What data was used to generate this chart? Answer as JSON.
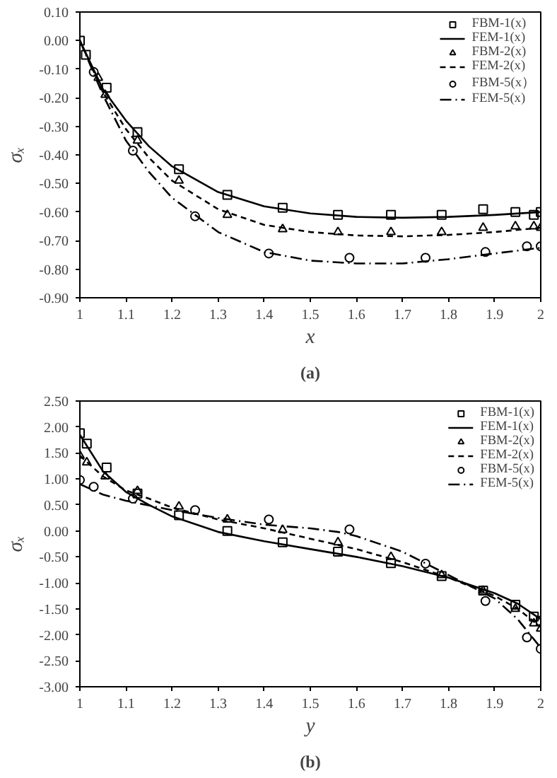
{
  "chart_data": [
    {
      "type": "line",
      "xlabel": "x",
      "ylabel": "σₓ",
      "annotations": [
        "(a)"
      ],
      "xlim": [
        1,
        2
      ],
      "xticks": [
        1,
        1.1,
        1.2,
        1.3,
        1.4,
        1.5,
        1.6,
        1.7,
        1.8,
        1.9,
        2
      ],
      "ylim": [
        -0.9,
        0.1
      ],
      "yticks": [
        {
          "value": 0.1,
          "label": "0.10"
        },
        {
          "value": 0,
          "label": "0.00"
        },
        {
          "value": -0.1,
          "label": "-0.10"
        },
        {
          "value": -0.2,
          "label": "-0.20"
        },
        {
          "value": -0.3,
          "label": "-0.30"
        },
        {
          "value": -0.4,
          "label": "-0.40"
        },
        {
          "value": -0.5,
          "label": "-0.50"
        },
        {
          "value": -0.6,
          "label": "-0.60"
        },
        {
          "value": -0.7,
          "label": "-0.70"
        },
        {
          "value": -0.8,
          "label": "-0.80"
        },
        {
          "value": -0.9,
          "label": "-0.90"
        }
      ],
      "grid": false,
      "legend": "top right",
      "series": [
        {
          "type": "scatter",
          "name": "FBM-1(x)",
          "color": "#000000",
          "marker": "square",
          "x": [
            1,
            1.013,
            1.058,
            1.125,
            1.215,
            1.32,
            1.44,
            1.56,
            1.675,
            1.785,
            1.875,
            1.945,
            1.985,
            2.0
          ],
          "values": [
            0,
            -0.05,
            -0.165,
            -0.32,
            -0.45,
            -0.54,
            -0.585,
            -0.61,
            -0.61,
            -0.61,
            -0.59,
            -0.6,
            -0.61,
            -0.6
          ]
        },
        {
          "type": "line",
          "name": "FEM-1(x)",
          "color": "#000000",
          "line_style": "solid",
          "x": [
            1,
            1.05,
            1.1,
            1.15,
            1.2,
            1.3,
            1.4,
            1.5,
            1.6,
            1.7,
            1.8,
            1.9,
            2.0
          ],
          "values": [
            0,
            -0.17,
            -0.28,
            -0.37,
            -0.44,
            -0.53,
            -0.58,
            -0.605,
            -0.617,
            -0.62,
            -0.617,
            -0.61,
            -0.6
          ]
        },
        {
          "type": "scatter",
          "name": "FBM-2(x)",
          "color": "#000000",
          "marker": "triangle",
          "x": [
            1.04,
            1.055,
            1.125,
            1.215,
            1.32,
            1.44,
            1.56,
            1.675,
            1.785,
            1.875,
            1.945,
            1.985,
            2.0
          ],
          "values": [
            -0.13,
            -0.19,
            -0.35,
            -0.49,
            -0.61,
            -0.66,
            -0.67,
            -0.67,
            -0.67,
            -0.655,
            -0.65,
            -0.65,
            -0.655
          ]
        },
        {
          "type": "line",
          "name": "FEM-2(x)",
          "color": "#000000",
          "line_style": "dashed",
          "x": [
            1,
            1.05,
            1.1,
            1.15,
            1.2,
            1.3,
            1.4,
            1.5,
            1.6,
            1.7,
            1.8,
            1.9,
            2.0
          ],
          "values": [
            0,
            -0.18,
            -0.31,
            -0.41,
            -0.49,
            -0.59,
            -0.645,
            -0.67,
            -0.682,
            -0.685,
            -0.68,
            -0.67,
            -0.655
          ]
        },
        {
          "type": "scatter",
          "name": "FBM-5(x）",
          "color": "#000000",
          "marker": "circle",
          "x": [
            1.03,
            1.115,
            1.25,
            1.41,
            1.585,
            1.75,
            1.88,
            1.97,
            2.0
          ],
          "values": [
            -0.11,
            -0.385,
            -0.615,
            -0.745,
            -0.76,
            -0.76,
            -0.74,
            -0.72,
            -0.72
          ]
        },
        {
          "type": "line",
          "name": "FEM-5(x)",
          "color": "#000000",
          "line_style": "dashdot",
          "x": [
            1,
            1.05,
            1.1,
            1.15,
            1.2,
            1.3,
            1.4,
            1.5,
            1.6,
            1.7,
            1.8,
            1.9,
            2.0
          ],
          "values": [
            0,
            -0.19,
            -0.35,
            -0.46,
            -0.55,
            -0.67,
            -0.74,
            -0.77,
            -0.78,
            -0.78,
            -0.765,
            -0.745,
            -0.725
          ]
        }
      ]
    },
    {
      "type": "line",
      "xlabel": "y",
      "ylabel": "σₓ",
      "annotations": [
        "(b)"
      ],
      "xlim": [
        1,
        2
      ],
      "xticks": [
        1,
        1.1,
        1.2,
        1.3,
        1.4,
        1.5,
        1.6,
        1.7,
        1.8,
        1.9,
        2
      ],
      "ylim": [
        -3,
        2.5
      ],
      "yticks": [
        {
          "value": 2.5,
          "label": "2.50"
        },
        {
          "value": 2,
          "label": "2.00"
        },
        {
          "value": 1.5,
          "label": "1.50"
        },
        {
          "value": 1,
          "label": "1.00"
        },
        {
          "value": 0.5,
          "label": "0.50"
        },
        {
          "value": 0,
          "label": "0.00"
        },
        {
          "value": -0.5,
          "label": "-0.50"
        },
        {
          "value": -1,
          "label": "-1.00"
        },
        {
          "value": -1.5,
          "label": "-1.50"
        },
        {
          "value": -2,
          "label": "-2.00"
        },
        {
          "value": -2.5,
          "label": "-2.50"
        },
        {
          "value": -3,
          "label": "-3.00"
        }
      ],
      "grid": false,
      "legend": "top right",
      "series": [
        {
          "type": "scatter",
          "name": "FBM-1(x)",
          "color": "#000000",
          "marker": "square",
          "x": [
            1,
            1.015,
            1.058,
            1.125,
            1.215,
            1.32,
            1.44,
            1.56,
            1.675,
            1.785,
            1.875,
            1.945,
            1.985,
            2.0
          ],
          "values": [
            1.88,
            1.68,
            1.22,
            0.72,
            0.3,
            0.0,
            -0.22,
            -0.4,
            -0.62,
            -0.87,
            -1.15,
            -1.42,
            -1.65,
            -1.73
          ]
        },
        {
          "type": "line",
          "name": "FEM-1(x)",
          "color": "#000000",
          "line_style": "solid",
          "x": [
            1,
            1.05,
            1.1,
            1.15,
            1.2,
            1.3,
            1.4,
            1.5,
            1.6,
            1.7,
            1.8,
            1.9,
            1.95,
            2.0
          ],
          "values": [
            1.85,
            1.15,
            0.75,
            0.5,
            0.28,
            -0.02,
            -0.2,
            -0.35,
            -0.5,
            -0.68,
            -0.9,
            -1.2,
            -1.4,
            -1.7
          ]
        },
        {
          "type": "scatter",
          "name": "FBM-2(x)",
          "color": "#000000",
          "marker": "triangle",
          "x": [
            1,
            1.015,
            1.055,
            1.125,
            1.215,
            1.32,
            1.44,
            1.56,
            1.675,
            1.785,
            1.875,
            1.945,
            1.985,
            2.0
          ],
          "values": [
            1.45,
            1.32,
            1.05,
            0.77,
            0.47,
            0.22,
            0.02,
            -0.22,
            -0.5,
            -0.85,
            -1.15,
            -1.5,
            -1.78,
            -1.88
          ]
        },
        {
          "type": "line",
          "name": "FEM-2(x)",
          "color": "#000000",
          "line_style": "dashed",
          "x": [
            1,
            1.05,
            1.1,
            1.15,
            1.2,
            1.3,
            1.4,
            1.5,
            1.6,
            1.7,
            1.8,
            1.9,
            1.95,
            2.0
          ],
          "values": [
            1.45,
            1.05,
            0.78,
            0.62,
            0.45,
            0.22,
            0.05,
            -0.15,
            -0.35,
            -0.6,
            -0.9,
            -1.25,
            -1.5,
            -1.85
          ]
        },
        {
          "type": "scatter",
          "name": "FBM-5(x)",
          "color": "#000000",
          "marker": "circle",
          "x": [
            1,
            1.03,
            1.115,
            1.25,
            1.41,
            1.585,
            1.75,
            1.88,
            1.97,
            2.0
          ],
          "values": [
            0.98,
            0.85,
            0.62,
            0.4,
            0.22,
            0.03,
            -0.63,
            -1.35,
            -2.05,
            -2.27
          ]
        },
        {
          "type": "line",
          "name": "FEM-5(x)",
          "color": "#000000",
          "line_style": "dashdot",
          "x": [
            1,
            1.05,
            1.1,
            1.2,
            1.3,
            1.4,
            1.5,
            1.56,
            1.6,
            1.7,
            1.8,
            1.9,
            1.95,
            2.0
          ],
          "values": [
            0.9,
            0.7,
            0.58,
            0.4,
            0.25,
            0.12,
            0.05,
            -0.02,
            -0.1,
            -0.4,
            -0.85,
            -1.3,
            -1.7,
            -2.25
          ]
        }
      ]
    }
  ]
}
